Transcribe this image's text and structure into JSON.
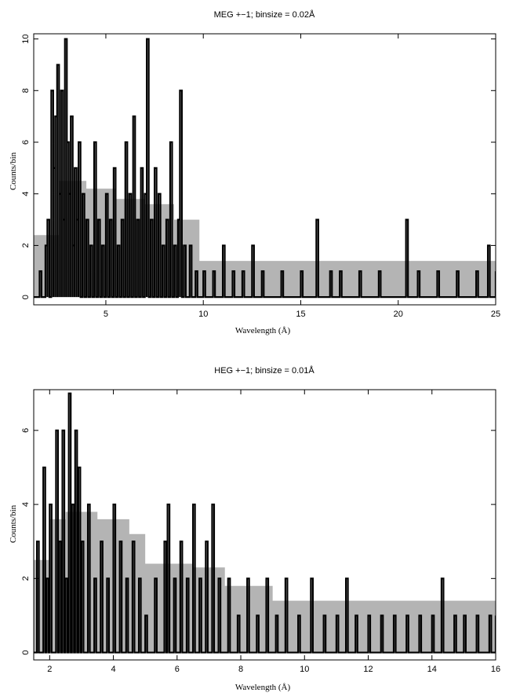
{
  "chart_data": [
    {
      "type": "line",
      "title": "MEG +−1; binsize = 0.02Å",
      "xlabel": "Wavelength (Å)",
      "ylabel": "Counts/bin",
      "xlim": [
        1.3,
        25
      ],
      "ylim": [
        -0.3,
        10.2
      ],
      "xticks": [
        5,
        10,
        15,
        20,
        25
      ],
      "xtick_labels": [
        "5",
        "10",
        "15",
        "20",
        "25"
      ],
      "yticks": [
        0,
        2,
        4,
        6,
        8,
        10
      ],
      "ytick_labels": [
        "0",
        "2",
        "4",
        "6",
        "8",
        "10"
      ],
      "grid": false,
      "series": [
        {
          "role": "data",
          "style": "histogram",
          "color": "#000000",
          "x": [
            1.6,
            1.9,
            2.0,
            2.2,
            2.3,
            2.4,
            2.5,
            2.6,
            2.7,
            2.8,
            2.9,
            3.0,
            3.1,
            3.2,
            3.3,
            3.4,
            3.5,
            3.6,
            3.8,
            4.0,
            4.2,
            4.4,
            4.6,
            4.8,
            5.0,
            5.2,
            5.4,
            5.6,
            5.8,
            6.0,
            6.2,
            6.4,
            6.6,
            6.8,
            7.0,
            7.1,
            7.3,
            7.5,
            7.7,
            7.9,
            8.1,
            8.3,
            8.5,
            8.7,
            8.8,
            9.0,
            9.3,
            9.6,
            10.0,
            10.5,
            11.0,
            11.5,
            12.0,
            12.5,
            13.0,
            14.0,
            15.0,
            15.8,
            16.5,
            17.0,
            18.0,
            19.0,
            20.4,
            21.0,
            22.0,
            23.0,
            24.0,
            24.6,
            25.0
          ],
          "values": [
            1,
            2,
            3,
            8,
            5,
            7,
            9,
            4,
            8,
            3,
            10,
            6,
            4,
            7,
            2,
            5,
            3,
            6,
            4,
            3,
            2,
            6,
            3,
            2,
            4,
            3,
            5,
            2,
            3,
            6,
            4,
            7,
            3,
            5,
            4,
            10,
            3,
            5,
            4,
            2,
            3,
            6,
            2,
            3,
            8,
            2,
            2,
            1,
            1,
            1,
            2,
            1,
            1,
            2,
            1,
            1,
            1,
            3,
            1,
            1,
            1,
            1,
            3,
            1,
            1,
            1,
            1,
            2,
            1
          ]
        },
        {
          "role": "model-band",
          "style": "band",
          "color": "#b4b4b4",
          "x": [
            1.3,
            2.0,
            2.6,
            4.0,
            5.5,
            7.0,
            8.5,
            9.8,
            11.0,
            25.0
          ],
          "lower": [
            0,
            0,
            0,
            0,
            0,
            0,
            0,
            0,
            0,
            0
          ],
          "upper": [
            2.4,
            2.4,
            4.5,
            4.2,
            3.8,
            3.6,
            3.0,
            1.4,
            1.4,
            1.4
          ]
        }
      ]
    },
    {
      "type": "line",
      "title": "HEG +−1; binsize = 0.01Å",
      "xlabel": "Wavelength (Å)",
      "ylabel": "Counts/bin",
      "xlim": [
        1.5,
        16
      ],
      "ylim": [
        -0.2,
        7.1
      ],
      "xticks": [
        2,
        4,
        6,
        8,
        10,
        12,
        14,
        16
      ],
      "xtick_labels": [
        "2",
        "4",
        "6",
        "8",
        "10",
        "12",
        "14",
        "16"
      ],
      "yticks": [
        0,
        2,
        4,
        6
      ],
      "ytick_labels": [
        "0",
        "2",
        "4",
        "6"
      ],
      "grid": false,
      "series": [
        {
          "role": "data",
          "style": "histogram",
          "color": "#000000",
          "x": [
            1.6,
            1.8,
            1.9,
            2.0,
            2.2,
            2.3,
            2.4,
            2.5,
            2.6,
            2.7,
            2.8,
            2.9,
            3.0,
            3.2,
            3.4,
            3.6,
            3.8,
            4.0,
            4.2,
            4.4,
            4.6,
            4.8,
            5.0,
            5.3,
            5.6,
            5.7,
            5.9,
            6.1,
            6.3,
            6.5,
            6.7,
            6.9,
            7.1,
            7.3,
            7.6,
            7.9,
            8.2,
            8.5,
            8.8,
            9.1,
            9.4,
            9.8,
            10.2,
            10.6,
            11.0,
            11.3,
            11.6,
            12.0,
            12.4,
            12.8,
            13.2,
            13.6,
            14.0,
            14.3,
            14.7,
            15.0,
            15.4,
            15.8,
            16.0
          ],
          "values": [
            3,
            5,
            2,
            4,
            6,
            3,
            6,
            2,
            7,
            4,
            6,
            5,
            3,
            4,
            2,
            3,
            2,
            4,
            3,
            2,
            3,
            2,
            1,
            2,
            3,
            4,
            2,
            3,
            2,
            4,
            2,
            3,
            4,
            2,
            2,
            1,
            2,
            1,
            2,
            1,
            2,
            1,
            2,
            1,
            1,
            2,
            1,
            1,
            1,
            1,
            1,
            1,
            1,
            2,
            1,
            1,
            1,
            1,
            1
          ]
        },
        {
          "role": "model-band",
          "style": "band",
          "color": "#b4b4b4",
          "x": [
            1.5,
            2.0,
            2.5,
            3.5,
            4.5,
            5.0,
            6.5,
            7.5,
            9.0,
            16.0
          ],
          "lower": [
            0,
            0,
            0,
            0,
            0,
            0,
            0,
            0,
            0,
            0
          ],
          "upper": [
            2.5,
            3.6,
            3.8,
            3.6,
            3.2,
            2.4,
            2.3,
            1.8,
            1.4,
            1.4
          ]
        }
      ]
    }
  ]
}
